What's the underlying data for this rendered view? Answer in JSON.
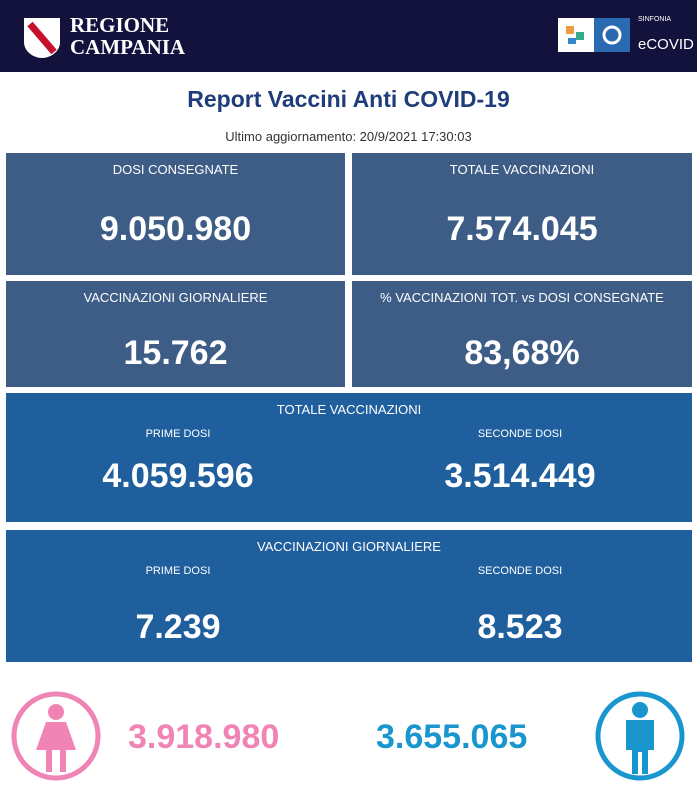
{
  "header": {
    "logo_line1": "REGIONE",
    "logo_line2": "CAMPANIA",
    "brand_small": "SINFONIA",
    "brand_name": "eCOVID"
  },
  "title": "Report Vaccini Anti COVID-19",
  "updated": "Ultimo aggiornamento: 20/9/2021 17:30:03",
  "cards": [
    {
      "label": "DOSI  CONSEGNATE",
      "value": "9.050.980"
    },
    {
      "label": "TOTALE VACCINAZIONI",
      "value": "7.574.045"
    },
    {
      "label": "VACCINAZIONI GIORNALIERE",
      "value": "15.762"
    },
    {
      "label": "% VACCINAZIONI TOT. vs DOSI CONSEGNATE",
      "value": "83,68%"
    }
  ],
  "panels": [
    {
      "title": "TOTALE VACCINAZIONI",
      "items": [
        {
          "label": "PRIME DOSI",
          "value": "4.059.596"
        },
        {
          "label": "SECONDE DOSI",
          "value": "3.514.449"
        }
      ]
    },
    {
      "title": "VACCINAZIONI GIORNALIERE",
      "items": [
        {
          "label": "PRIME DOSI",
          "value": "7.239"
        },
        {
          "label": "SECONDE DOSI",
          "value": "8.523"
        }
      ]
    }
  ],
  "gender": {
    "female": "3.918.980",
    "male": "3.655.065"
  }
}
